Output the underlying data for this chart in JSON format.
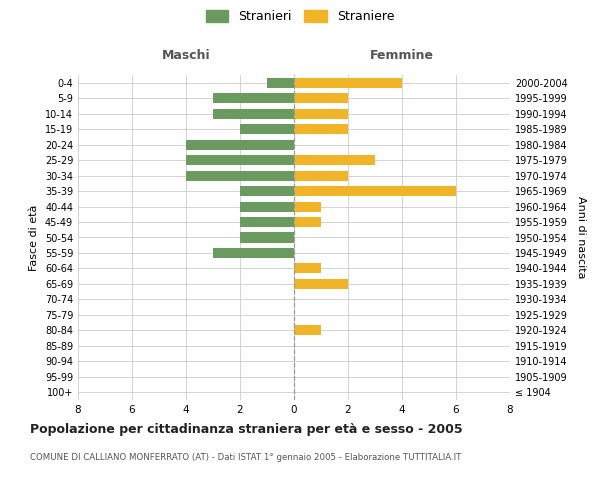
{
  "age_groups": [
    "100+",
    "95-99",
    "90-94",
    "85-89",
    "80-84",
    "75-79",
    "70-74",
    "65-69",
    "60-64",
    "55-59",
    "50-54",
    "45-49",
    "40-44",
    "35-39",
    "30-34",
    "25-29",
    "20-24",
    "15-19",
    "10-14",
    "5-9",
    "0-4"
  ],
  "birth_years": [
    "≤ 1904",
    "1905-1909",
    "1910-1914",
    "1915-1919",
    "1920-1924",
    "1925-1929",
    "1930-1934",
    "1935-1939",
    "1940-1944",
    "1945-1949",
    "1950-1954",
    "1955-1959",
    "1960-1964",
    "1965-1969",
    "1970-1974",
    "1975-1979",
    "1980-1984",
    "1985-1989",
    "1990-1994",
    "1995-1999",
    "2000-2004"
  ],
  "maschi": [
    0,
    0,
    0,
    0,
    0,
    0,
    0,
    0,
    0,
    3,
    2,
    2,
    2,
    2,
    4,
    4,
    4,
    2,
    3,
    3,
    1
  ],
  "femmine": [
    0,
    0,
    0,
    0,
    1,
    0,
    0,
    2,
    1,
    0,
    0,
    1,
    1,
    6,
    2,
    3,
    0,
    2,
    2,
    2,
    4
  ],
  "male_color": "#6a9a5f",
  "female_color": "#f0b429",
  "background_color": "#ffffff",
  "grid_color": "#cccccc",
  "xlim": 8,
  "title": "Popolazione per cittadinanza straniera per età e sesso - 2005",
  "subtitle": "COMUNE DI CALLIANO MONFERRATO (AT) - Dati ISTAT 1° gennaio 2005 - Elaborazione TUTTITALIA.IT",
  "xlabel_left": "Maschi",
  "xlabel_right": "Femmine",
  "ylabel_left": "Fasce di età",
  "ylabel_right": "Anni di nascita",
  "legend_stranieri": "Stranieri",
  "legend_straniere": "Straniere"
}
